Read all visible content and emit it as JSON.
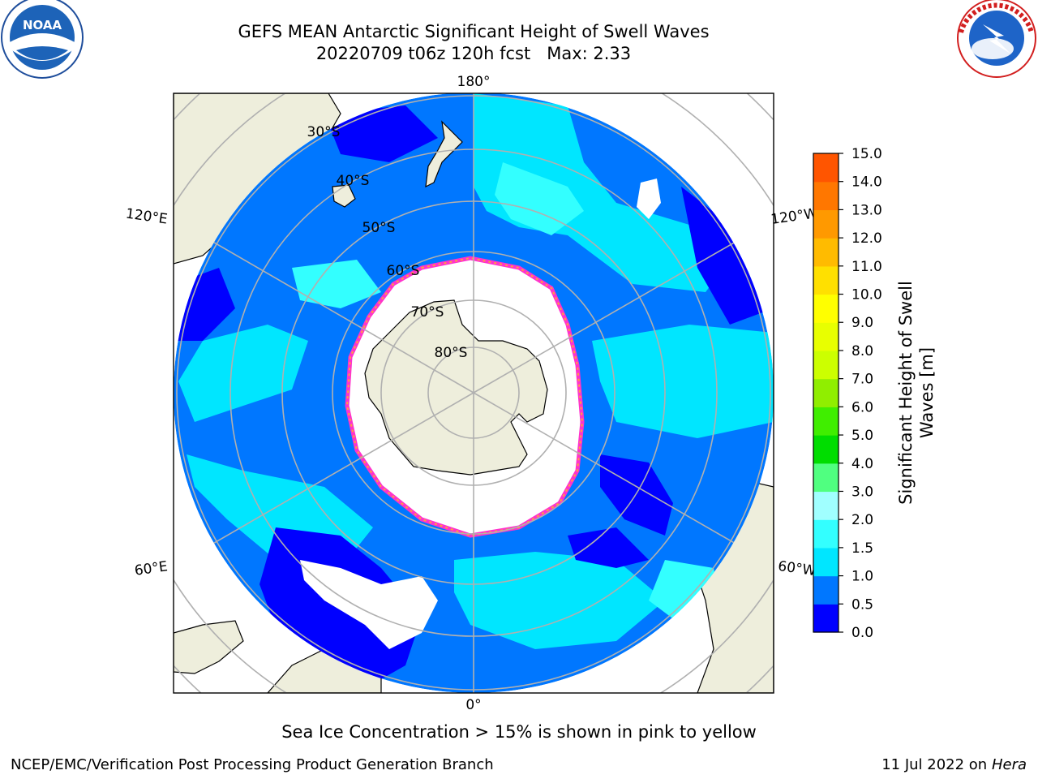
{
  "title": "GEFS MEAN Antarctic Significant Height of Swell Waves",
  "subtitle": "20220709 t06z 120h fcst   Max: 2.33",
  "logos": {
    "left": "noaa-logo",
    "right": "national-weather-service-logo",
    "left_text": "NOAA",
    "right_text": "NATIONAL WEATHER SERVICE"
  },
  "map": {
    "projection": "south-polar-stereographic",
    "longitude_labels": {
      "top": "180°",
      "bottom": "0°",
      "upper_left": "120°E",
      "upper_right": "120°W",
      "lower_left": "60°E",
      "lower_right": "60°W"
    },
    "latitude_labels": [
      "30°S",
      "40°S",
      "50°S",
      "60°S",
      "70°S",
      "80°S"
    ],
    "colors": {
      "land": "#eeeedc",
      "ice": "#ffffff",
      "ice_edge": [
        "#ff33cc",
        "#ffa040",
        "#ffd23c"
      ],
      "grid": "#b0b0b0"
    }
  },
  "colorbar": {
    "label_line1": "Significant Height of Swell",
    "label_line2": "Waves [m]",
    "ticks": [
      "0.0",
      "0.5",
      "1.0",
      "1.5",
      "2.0",
      "2.5",
      "3.0",
      "3.5",
      "4.0",
      "4.5",
      "5.0",
      "5.5",
      "6.0",
      "6.5",
      "7.0",
      "7.5",
      "8.0",
      "8.5",
      "9.0",
      "9.5",
      "10.0",
      "10.5",
      "11.0",
      "11.5",
      "12.0",
      "12.5",
      "13.0",
      "13.5",
      "14.0",
      "14.5",
      "15.0"
    ],
    "tick_labels": [
      "0.0",
      "0.5",
      "1.0",
      "1.5",
      "2.0",
      "3.0",
      "4.0",
      "5.0",
      "6.0",
      "7.0",
      "8.0",
      "9.0",
      "10.0",
      "11.0",
      "12.0",
      "13.0",
      "14.0",
      "15.0"
    ],
    "colors": [
      "#0000ff",
      "#0077ff",
      "#00e6ff",
      "#33ffff",
      "#a0ffff",
      "#50ff80",
      "#00dd00",
      "#40ee00",
      "#90ee00",
      "#ccff00",
      "#e8ff00",
      "#ffff00",
      "#ffe000",
      "#ffbb00",
      "#ff9900",
      "#ff7700",
      "#ff5500",
      "#ff2a00",
      "#ff0000"
    ]
  },
  "footnote": "Sea Ice Concentration > 15% is shown in pink to yellow",
  "credit": "NCEP/EMC/Verification Post Processing Product Generation Branch",
  "date_prefix": "11 Jul 2022 on ",
  "date_machine": "Hera"
}
